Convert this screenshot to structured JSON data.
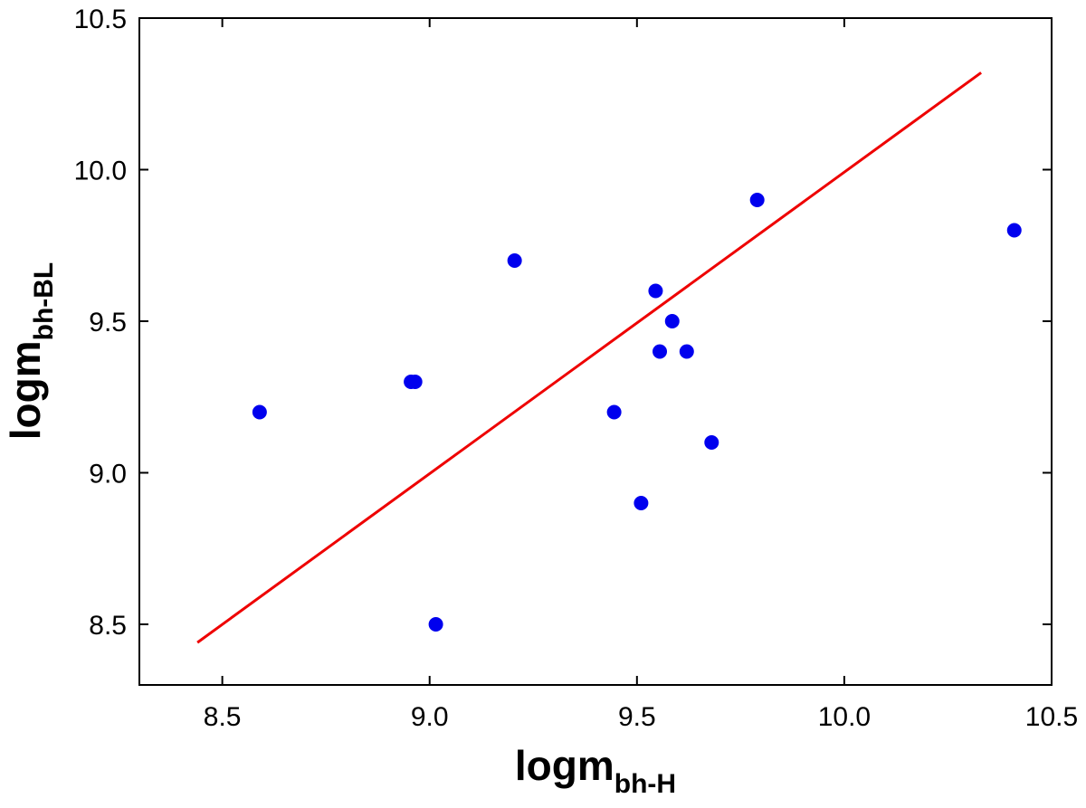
{
  "chart_data": {
    "type": "scatter",
    "xlabel": {
      "main": "logm",
      "sub": "bh-H"
    },
    "ylabel": {
      "main": "logm",
      "sub": "bh-BL"
    },
    "xlim": [
      8.3,
      10.5
    ],
    "ylim": [
      8.3,
      10.5
    ],
    "xticks": [
      "8.5",
      "9.0",
      "9.5",
      "10.0",
      "10.5"
    ],
    "yticks": [
      "8.5",
      "9.0",
      "9.5",
      "10.0",
      "10.5"
    ],
    "grid": false,
    "legend": "none",
    "points": [
      {
        "x": 8.59,
        "y": 9.2
      },
      {
        "x": 8.955,
        "y": 9.3
      },
      {
        "x": 8.965,
        "y": 9.3
      },
      {
        "x": 9.015,
        "y": 8.5
      },
      {
        "x": 9.205,
        "y": 9.7
      },
      {
        "x": 9.445,
        "y": 9.2
      },
      {
        "x": 9.51,
        "y": 8.9
      },
      {
        "x": 9.545,
        "y": 9.6
      },
      {
        "x": 9.555,
        "y": 9.4
      },
      {
        "x": 9.585,
        "y": 9.5
      },
      {
        "x": 9.62,
        "y": 9.4
      },
      {
        "x": 9.68,
        "y": 9.1
      },
      {
        "x": 9.79,
        "y": 9.9
      },
      {
        "x": 10.41,
        "y": 9.8
      }
    ],
    "fit_line": {
      "x": [
        8.44,
        10.33
      ],
      "y": [
        8.44,
        10.32
      ]
    },
    "colors": {
      "points": "#0000ee",
      "line": "#ee0000",
      "axes": "#000000"
    }
  }
}
